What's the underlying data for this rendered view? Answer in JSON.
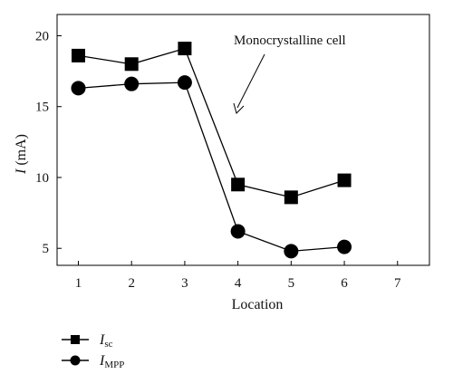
{
  "chart_data": {
    "type": "line",
    "x": [
      1,
      2,
      3,
      4,
      5,
      6
    ],
    "series": [
      {
        "name": "I_sc",
        "legend_main": "I",
        "legend_sub": "sc",
        "marker": "square",
        "values": [
          18.6,
          18.0,
          19.1,
          9.5,
          8.6,
          9.8
        ]
      },
      {
        "name": "I_MPP",
        "legend_main": "I",
        "legend_sub": "MPP",
        "marker": "circle",
        "values": [
          16.3,
          16.6,
          16.7,
          6.2,
          4.8,
          5.1
        ]
      }
    ],
    "xlabel": "Location",
    "ylabel_italic": "I",
    "ylabel_unit": " (mA)",
    "xlim": [
      0.6,
      7.6
    ],
    "ylim": [
      3.8,
      21.5
    ],
    "xticks": [
      1,
      2,
      3,
      4,
      5,
      6,
      7
    ],
    "yticks": [
      5,
      10,
      15,
      20
    ],
    "grid": false,
    "legend_position": "below-left",
    "annotation": "Monocrystalline cell",
    "colors": {
      "line": "#000000",
      "marker": "#000000"
    }
  }
}
